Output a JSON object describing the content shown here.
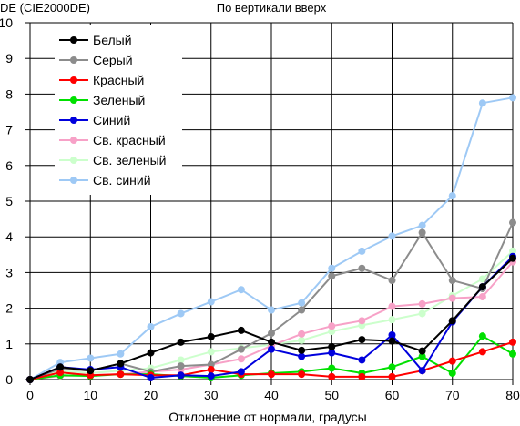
{
  "chart_data": {
    "type": "line",
    "title": "По вертикали вверх",
    "ylabel": "DE (CIE2000DE)",
    "xlabel": "Отклонение от нормали, градусы",
    "xlim": [
      0,
      80
    ],
    "ylim": [
      0,
      10
    ],
    "x_ticks": [
      "0",
      "10",
      "20",
      "30",
      "40",
      "50",
      "60",
      "70",
      "80"
    ],
    "y_ticks": [
      "0",
      "1",
      "2",
      "3",
      "4",
      "5",
      "6",
      "7",
      "8",
      "9",
      "10"
    ],
    "grid": true,
    "legend_position": "top-left",
    "x": [
      0,
      5,
      10,
      15,
      20,
      25,
      30,
      35,
      40,
      45,
      50,
      55,
      60,
      65,
      70,
      75,
      80
    ],
    "series": [
      {
        "name": "Белый",
        "color": "#000000",
        "values": [
          0,
          0.35,
          0.25,
          0.45,
          0.75,
          1.05,
          1.2,
          1.38,
          1.05,
          0.82,
          0.92,
          1.12,
          1.08,
          0.8,
          1.65,
          2.6,
          3.4
        ]
      },
      {
        "name": "Серый",
        "color": "#8c8c8c",
        "values": [
          0,
          0.3,
          0.25,
          0.45,
          0.22,
          0.38,
          0.42,
          0.85,
          1.3,
          1.95,
          2.9,
          3.12,
          2.78,
          4.12,
          2.78,
          2.55,
          4.4
        ]
      },
      {
        "name": "Красный",
        "color": "#ff0000",
        "values": [
          0,
          0.2,
          0.12,
          0.15,
          0.12,
          0.12,
          0.28,
          0.15,
          0.15,
          0.15,
          0.08,
          0.08,
          0.08,
          0.25,
          0.52,
          0.78,
          1.05
        ]
      },
      {
        "name": "Зеленый",
        "color": "#00e000",
        "values": [
          0,
          0.12,
          0.1,
          0.15,
          0.15,
          0.1,
          0.05,
          0.12,
          0.18,
          0.22,
          0.32,
          0.18,
          0.35,
          0.65,
          0.18,
          1.22,
          0.72
        ]
      },
      {
        "name": "Синий",
        "color": "#0000dd",
        "values": [
          0,
          0.35,
          0.28,
          0.35,
          0.05,
          0.12,
          0.1,
          0.22,
          0.85,
          0.65,
          0.75,
          0.55,
          1.25,
          0.25,
          1.62,
          2.6,
          3.45
        ]
      },
      {
        "name": "Св. красный",
        "color": "#f7a1c7",
        "values": [
          0,
          0.1,
          0.12,
          0.15,
          0.22,
          0.28,
          0.42,
          0.58,
          0.95,
          1.28,
          1.5,
          1.65,
          2.05,
          2.12,
          2.28,
          2.32,
          3.3
        ]
      },
      {
        "name": "Св. зеленый",
        "color": "#ccffcc",
        "values": [
          0,
          0.25,
          0.18,
          0.25,
          0.32,
          0.55,
          0.78,
          0.88,
          0.98,
          1.1,
          1.35,
          1.52,
          1.68,
          1.85,
          2.35,
          2.82,
          3.6
        ]
      },
      {
        "name": "Св. синий",
        "color": "#9ec9f5",
        "values": [
          0,
          0.48,
          0.6,
          0.72,
          1.48,
          1.85,
          2.18,
          2.52,
          1.95,
          2.15,
          3.12,
          3.6,
          4.02,
          4.32,
          5.15,
          7.75,
          7.9
        ]
      }
    ]
  }
}
